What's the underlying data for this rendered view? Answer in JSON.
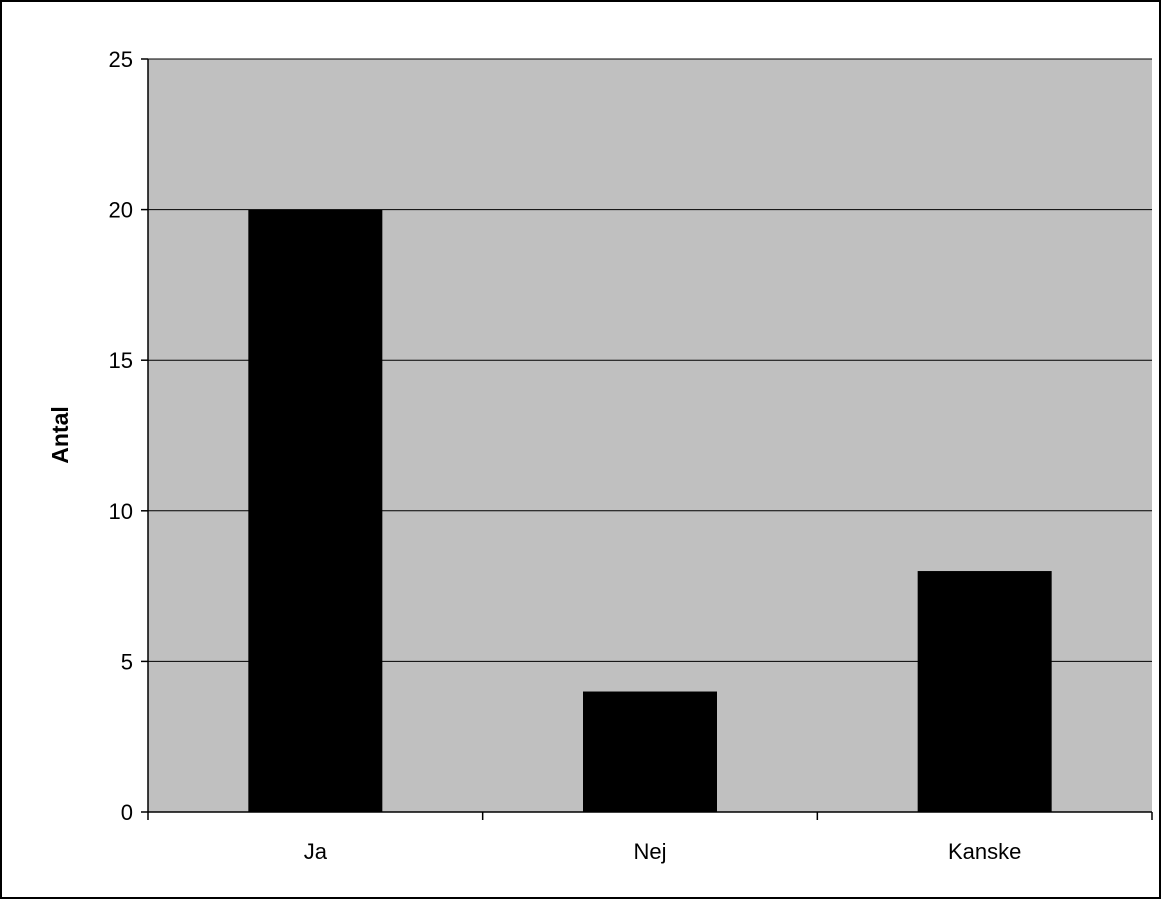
{
  "chart_data": {
    "type": "bar",
    "title": "",
    "xlabel": "",
    "ylabel": "Antal",
    "categories": [
      "Ja",
      "Nej",
      "Kanske"
    ],
    "values": [
      20,
      4,
      8
    ],
    "ylim": [
      0,
      25
    ],
    "yticks": [
      0,
      5,
      10,
      15,
      20,
      25
    ],
    "grid": true,
    "legend": "none",
    "colors": {
      "bar": "#000000",
      "plot_background": "#c0c0c0",
      "gridline": "#000000",
      "frame": "#000000"
    }
  }
}
